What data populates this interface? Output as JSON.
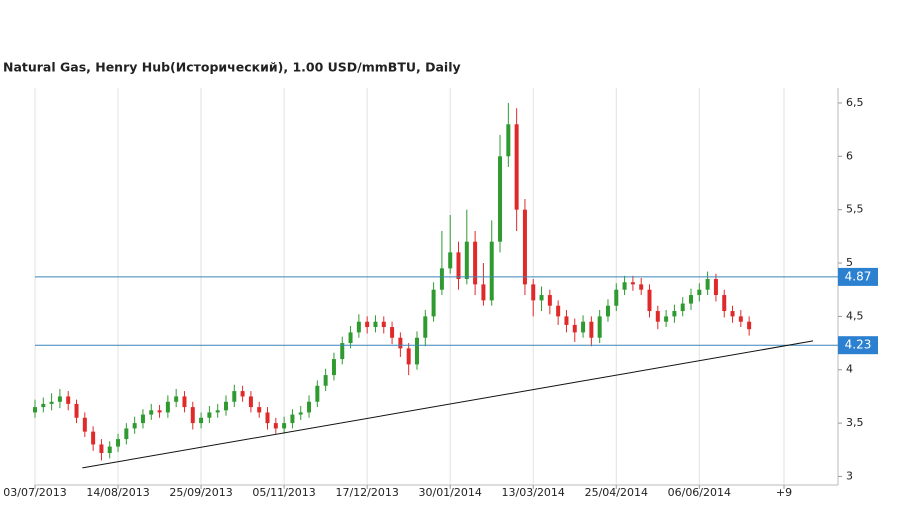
{
  "chart_data": {
    "type": "candlestick",
    "title": "Natural Gas, Henry Hub(Исторический), 1.00 USD/mmBTU, Daily",
    "x": [
      0,
      1,
      2,
      3,
      4,
      5,
      6,
      7,
      8,
      9,
      10,
      11,
      12,
      13,
      14,
      15,
      16,
      17,
      18,
      19,
      20,
      21,
      22,
      23,
      24,
      25,
      26,
      27,
      28,
      29,
      30,
      31,
      32,
      33,
      34,
      35,
      36,
      37,
      38,
      39,
      40,
      41,
      42,
      43,
      44,
      45,
      46,
      47,
      48,
      49,
      50,
      51,
      52,
      53,
      54,
      55,
      56,
      57,
      58,
      59,
      60,
      61,
      62,
      63,
      64,
      65,
      66,
      67,
      68,
      69,
      70,
      71,
      72,
      73,
      74,
      75,
      76,
      77,
      78,
      79,
      80,
      81,
      82,
      83,
      84,
      85,
      86
    ],
    "open": [
      3.6,
      3.65,
      3.68,
      3.7,
      3.75,
      3.68,
      3.55,
      3.42,
      3.3,
      3.22,
      3.28,
      3.35,
      3.45,
      3.5,
      3.58,
      3.62,
      3.6,
      3.7,
      3.75,
      3.65,
      3.5,
      3.55,
      3.6,
      3.62,
      3.7,
      3.8,
      3.75,
      3.65,
      3.6,
      3.5,
      3.45,
      3.5,
      3.58,
      3.6,
      3.7,
      3.85,
      3.95,
      4.1,
      4.25,
      4.35,
      4.45,
      4.4,
      4.45,
      4.4,
      4.3,
      4.2,
      4.05,
      4.3,
      4.5,
      4.75,
      4.95,
      5.1,
      4.85,
      5.2,
      4.8,
      4.65,
      5.2,
      6.0,
      6.3,
      5.5,
      4.8,
      4.65,
      4.7,
      4.6,
      4.5,
      4.42,
      4.35,
      4.45,
      4.3,
      4.5,
      4.6,
      4.75,
      4.82,
      4.8,
      4.75,
      4.55,
      4.45,
      4.5,
      4.55,
      4.62,
      4.7,
      4.75,
      4.85,
      4.7,
      4.55,
      4.5,
      4.45
    ],
    "high": [
      3.72,
      3.74,
      3.78,
      3.82,
      3.8,
      3.72,
      3.6,
      3.47,
      3.35,
      3.33,
      3.4,
      3.5,
      3.56,
      3.63,
      3.68,
      3.67,
      3.76,
      3.82,
      3.8,
      3.7,
      3.6,
      3.66,
      3.68,
      3.76,
      3.86,
      3.85,
      3.8,
      3.7,
      3.65,
      3.55,
      3.56,
      3.63,
      3.66,
      3.76,
      3.9,
      4.01,
      4.16,
      4.31,
      4.41,
      4.52,
      4.5,
      4.51,
      4.5,
      4.45,
      4.35,
      4.25,
      4.36,
      4.56,
      4.82,
      5.3,
      5.45,
      5.2,
      5.5,
      5.3,
      5.0,
      5.4,
      6.2,
      6.5,
      6.45,
      5.6,
      4.85,
      4.78,
      4.75,
      4.65,
      4.56,
      4.48,
      4.51,
      4.5,
      4.56,
      4.66,
      4.81,
      4.88,
      4.88,
      4.86,
      4.8,
      4.6,
      4.56,
      4.61,
      4.68,
      4.76,
      4.81,
      4.92,
      4.9,
      4.75,
      4.6,
      4.56,
      4.5
    ],
    "low": [
      3.55,
      3.6,
      3.62,
      3.64,
      3.62,
      3.5,
      3.37,
      3.24,
      3.15,
      3.17,
      3.23,
      3.3,
      3.4,
      3.45,
      3.53,
      3.55,
      3.55,
      3.65,
      3.6,
      3.44,
      3.45,
      3.5,
      3.55,
      3.57,
      3.65,
      3.7,
      3.6,
      3.55,
      3.44,
      3.4,
      3.4,
      3.45,
      3.53,
      3.55,
      3.65,
      3.8,
      3.9,
      4.05,
      4.2,
      4.3,
      4.34,
      4.35,
      4.34,
      4.24,
      4.12,
      3.95,
      4.0,
      4.22,
      4.45,
      4.7,
      4.9,
      4.75,
      4.8,
      4.7,
      4.6,
      4.6,
      5.1,
      5.9,
      5.3,
      4.7,
      4.5,
      4.55,
      4.52,
      4.42,
      4.35,
      4.26,
      4.3,
      4.22,
      4.25,
      4.45,
      4.55,
      4.7,
      4.74,
      4.7,
      4.49,
      4.38,
      4.4,
      4.44,
      4.5,
      4.56,
      4.64,
      4.7,
      4.64,
      4.49,
      4.44,
      4.4,
      4.32
    ],
    "close": [
      3.65,
      3.68,
      3.7,
      3.75,
      3.68,
      3.55,
      3.42,
      3.3,
      3.22,
      3.28,
      3.35,
      3.45,
      3.5,
      3.58,
      3.62,
      3.6,
      3.7,
      3.75,
      3.65,
      3.5,
      3.55,
      3.6,
      3.62,
      3.7,
      3.8,
      3.75,
      3.65,
      3.6,
      3.5,
      3.45,
      3.5,
      3.58,
      3.6,
      3.7,
      3.85,
      3.95,
      4.1,
      4.25,
      4.35,
      4.45,
      4.4,
      4.45,
      4.4,
      4.3,
      4.2,
      4.05,
      4.3,
      4.5,
      4.75,
      4.95,
      5.1,
      4.85,
      5.2,
      4.8,
      4.65,
      5.2,
      6.0,
      6.3,
      5.5,
      4.8,
      4.65,
      4.7,
      4.6,
      4.5,
      4.42,
      4.35,
      4.45,
      4.3,
      4.5,
      4.6,
      4.75,
      4.82,
      4.8,
      4.75,
      4.55,
      4.45,
      4.5,
      4.55,
      4.62,
      4.7,
      4.75,
      4.85,
      4.7,
      4.55,
      4.5,
      4.45,
      4.38
    ],
    "up_color": "#2f9a2f",
    "down_color": "#e02a2a",
    "xlim": [
      0,
      96.7
    ],
    "xticks": [
      {
        "value": 0,
        "label": "03/07/2013"
      },
      {
        "value": 10,
        "label": "14/08/2013"
      },
      {
        "value": 20,
        "label": "25/09/2013"
      },
      {
        "value": 30,
        "label": "05/11/2013"
      },
      {
        "value": 40,
        "label": "17/12/2013"
      },
      {
        "value": 50,
        "label": "30/01/2014"
      },
      {
        "value": 60,
        "label": "13/03/2014"
      },
      {
        "value": 70,
        "label": "25/04/2014"
      },
      {
        "value": 80,
        "label": "06/06/2014"
      },
      {
        "value": 90.2,
        "label": "+9"
      }
    ],
    "ylim": [
      2.92,
      6.64
    ],
    "yticks": [
      3,
      {
        "value": 3.5,
        "label": "3,5"
      },
      4,
      {
        "value": 4.5,
        "label": "4,5"
      },
      5,
      {
        "value": 5.5,
        "label": "5,5"
      },
      6,
      {
        "value": 6.5,
        "label": "6,5"
      }
    ],
    "hlines": [
      4.87,
      4.23
    ],
    "hline_color": "#3a86b8",
    "trendline": {
      "x": [
        5.7,
        93.7
      ],
      "y": [
        3.08,
        4.27
      ]
    },
    "grid": true
  }
}
